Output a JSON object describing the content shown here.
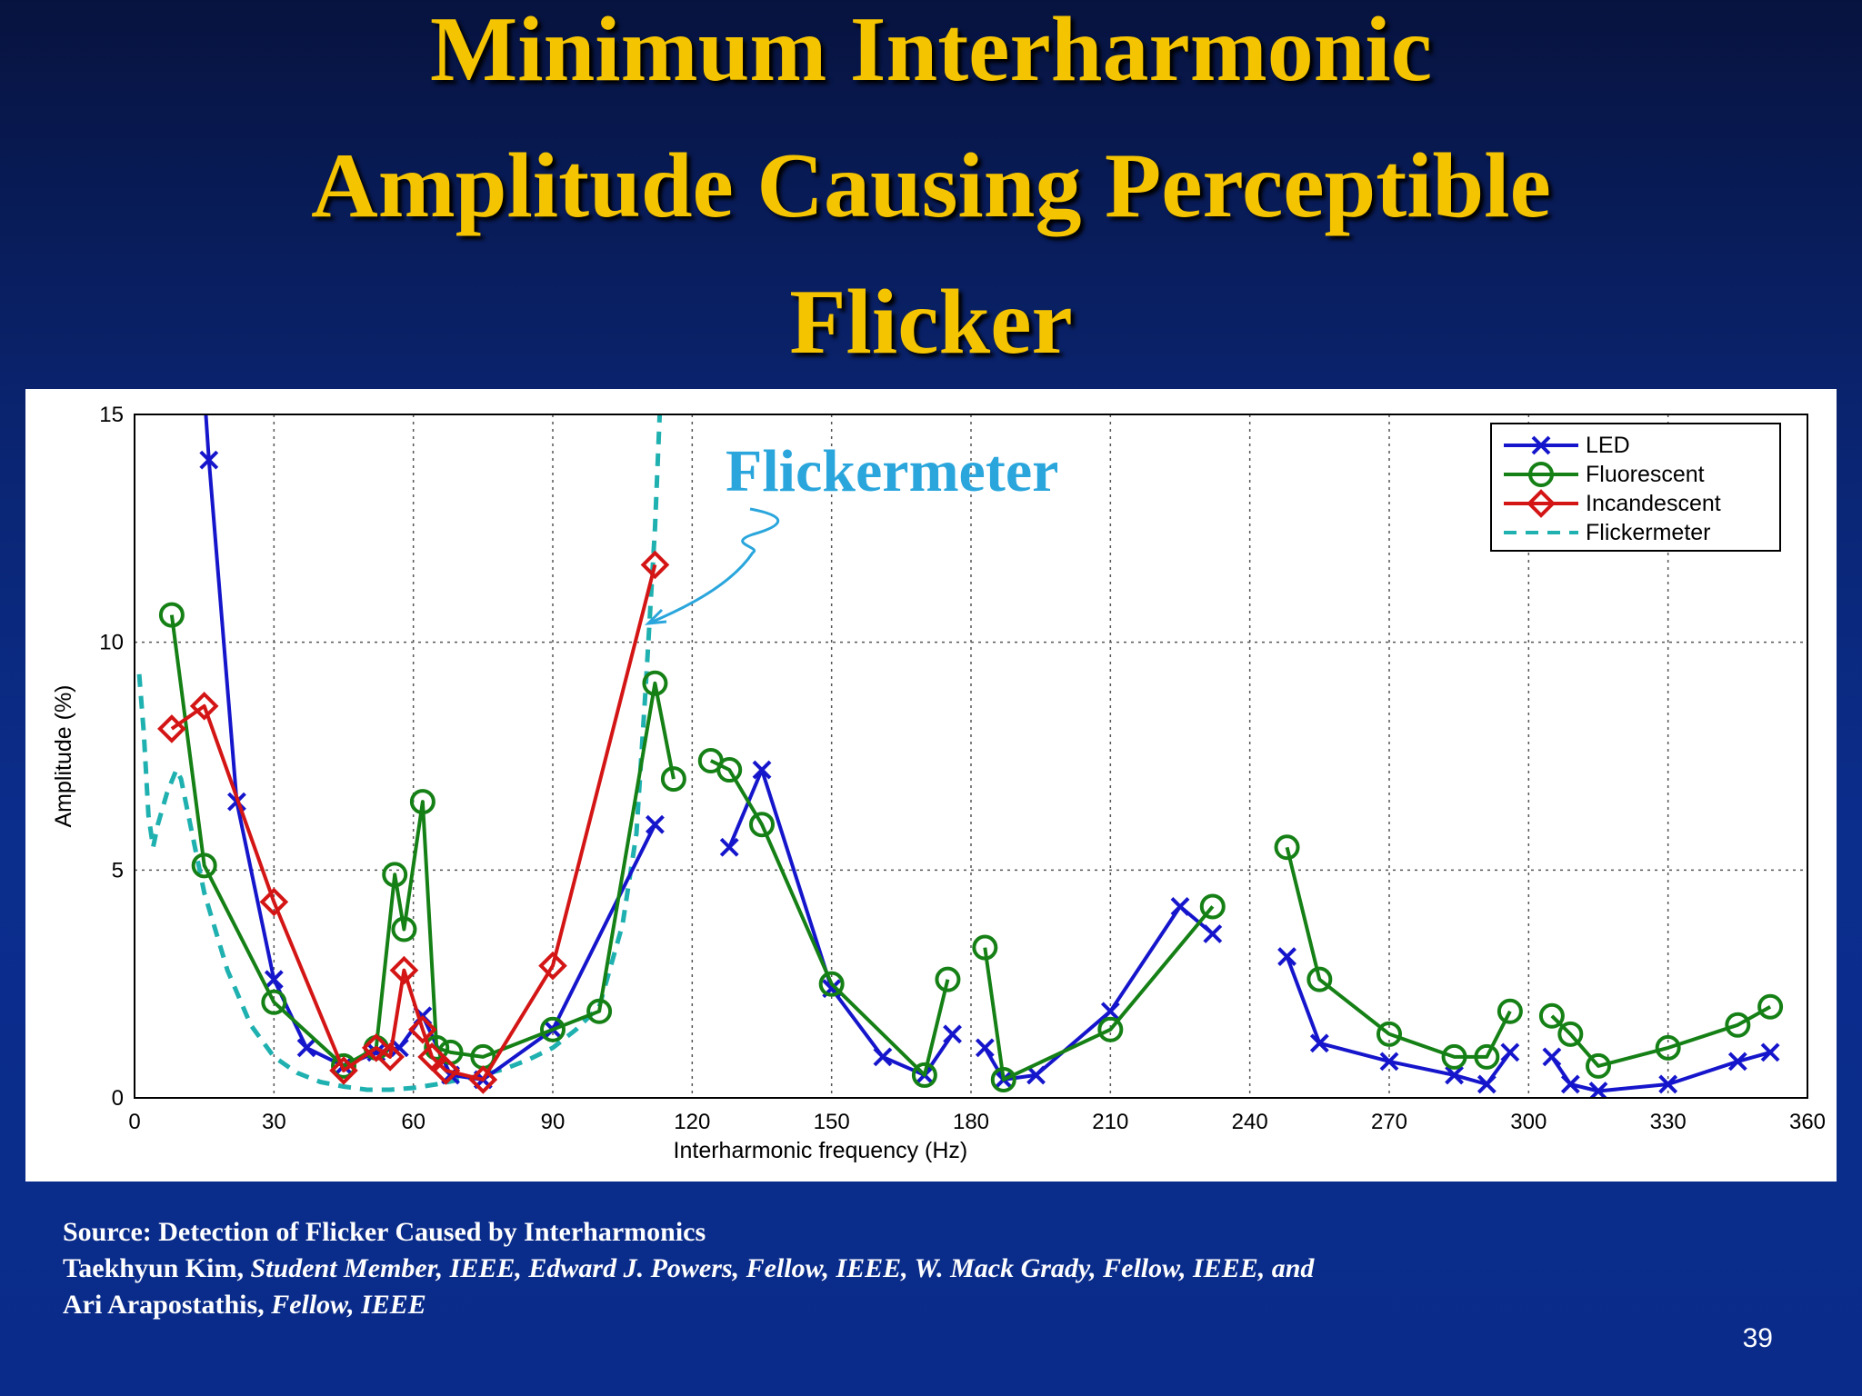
{
  "slide": {
    "title_lines": [
      "Minimum Interharmonic",
      "Amplitude Causing Perceptible",
      "Flicker"
    ],
    "source_line1": "Source: Detection of Flicker Caused by Interharmonics",
    "source_line2_name": "Taekhyun Kim,",
    "source_line2_rest": " Student Member, IEEE, Edward J. Powers, Fellow, IEEE, W. Mack Grady, Fellow, IEEE, and",
    "source_line3_name": "Ari Arapostathis,",
    "source_line3_rest": " Fellow, IEEE",
    "page_number": "39",
    "title_color": "#f5c400"
  },
  "chart_data": {
    "type": "line",
    "xlabel": "Interharmonic frequency (Hz)",
    "ylabel": "Amplitude (%)",
    "xlim": [
      0,
      360
    ],
    "ylim": [
      0,
      15
    ],
    "xticks": [
      0,
      30,
      60,
      90,
      120,
      150,
      180,
      210,
      240,
      270,
      300,
      330,
      360
    ],
    "yticks": [
      0,
      5,
      10,
      15
    ],
    "grid": true,
    "legend_position": "top-right",
    "annotation": {
      "text": "Flickermeter",
      "color": "#2aa6dc"
    },
    "series": [
      {
        "name": "LED",
        "color": "#1515cc",
        "marker": "x",
        "dash": "solid",
        "segments": [
          [
            [
              15,
              15.5
            ],
            [
              16,
              14.0
            ],
            [
              22,
              6.5
            ],
            [
              30,
              2.6
            ],
            [
              37,
              1.1
            ],
            [
              45,
              0.7
            ],
            [
              52,
              1.0
            ],
            [
              57,
              1.1
            ],
            [
              62,
              1.8
            ],
            [
              68,
              0.5
            ],
            [
              75,
              0.4
            ],
            [
              90,
              1.5
            ],
            [
              112,
              6.0
            ]
          ],
          [
            [
              128,
              5.5
            ],
            [
              135,
              7.2
            ],
            [
              150,
              2.4
            ],
            [
              161,
              0.9
            ],
            [
              170,
              0.5
            ],
            [
              176,
              1.4
            ]
          ],
          [
            [
              183,
              1.1
            ],
            [
              187,
              0.4
            ],
            [
              194,
              0.5
            ],
            [
              210,
              1.9
            ],
            [
              225,
              4.2
            ],
            [
              232,
              3.6
            ]
          ],
          [
            [
              248,
              3.1
            ],
            [
              255,
              1.2
            ],
            [
              270,
              0.8
            ],
            [
              284,
              0.5
            ],
            [
              291,
              0.3
            ],
            [
              296,
              1.0
            ]
          ],
          [
            [
              305,
              0.9
            ],
            [
              309,
              0.3
            ],
            [
              315,
              0.15
            ],
            [
              330,
              0.3
            ],
            [
              345,
              0.8
            ],
            [
              352,
              1.0
            ]
          ]
        ]
      },
      {
        "name": "Fluorescent",
        "color": "#158015",
        "marker": "circle",
        "dash": "solid",
        "segments": [
          [
            [
              8,
              10.6
            ],
            [
              15,
              5.1
            ],
            [
              30,
              2.1
            ],
            [
              45,
              0.7
            ],
            [
              52,
              1.1
            ],
            [
              56,
              4.9
            ],
            [
              58,
              3.7
            ],
            [
              62,
              6.5
            ],
            [
              65,
              1.1
            ],
            [
              68,
              1.0
            ],
            [
              75,
              0.9
            ],
            [
              90,
              1.5
            ],
            [
              100,
              1.9
            ],
            [
              112,
              9.1
            ],
            [
              116,
              7.0
            ]
          ],
          [
            [
              124,
              7.4
            ],
            [
              128,
              7.2
            ],
            [
              135,
              6.0
            ],
            [
              150,
              2.5
            ],
            [
              170,
              0.5
            ],
            [
              175,
              2.6
            ]
          ],
          [
            [
              183,
              3.3
            ],
            [
              187,
              0.4
            ],
            [
              210,
              1.5
            ],
            [
              232,
              4.2
            ]
          ],
          [
            [
              248,
              5.5
            ],
            [
              255,
              2.6
            ],
            [
              270,
              1.4
            ],
            [
              284,
              0.9
            ],
            [
              291,
              0.9
            ],
            [
              296,
              1.9
            ]
          ],
          [
            [
              305,
              1.8
            ],
            [
              309,
              1.4
            ],
            [
              315,
              0.7
            ],
            [
              330,
              1.1
            ],
            [
              345,
              1.6
            ],
            [
              352,
              2.0
            ]
          ]
        ]
      },
      {
        "name": "Incandescent",
        "color": "#d41515",
        "marker": "diamond",
        "dash": "solid",
        "segments": [
          [
            [
              8,
              8.1
            ],
            [
              15,
              8.6
            ],
            [
              30,
              4.3
            ],
            [
              45,
              0.6
            ],
            [
              52,
              1.1
            ],
            [
              55,
              0.9
            ],
            [
              58,
              2.8
            ],
            [
              62,
              1.5
            ],
            [
              64,
              0.9
            ],
            [
              67,
              0.6
            ],
            [
              75,
              0.4
            ],
            [
              90,
              2.9
            ],
            [
              112,
              11.7
            ]
          ]
        ]
      },
      {
        "name": "Flickermeter",
        "color": "#1fb0b0",
        "marker": "none",
        "dash": "dashed",
        "segments": [
          [
            [
              1,
              9.3
            ],
            [
              2,
              8.0
            ],
            [
              3,
              6.2
            ],
            [
              4,
              5.5
            ],
            [
              5,
              6.0
            ],
            [
              7,
              6.7
            ],
            [
              9,
              7.2
            ],
            [
              10,
              7.0
            ],
            [
              12,
              6.0
            ],
            [
              15,
              4.5
            ],
            [
              20,
              2.8
            ],
            [
              25,
              1.6
            ],
            [
              30,
              0.9
            ],
            [
              35,
              0.55
            ],
            [
              40,
              0.35
            ],
            [
              45,
              0.25
            ],
            [
              50,
              0.18
            ],
            [
              55,
              0.18
            ],
            [
              60,
              0.22
            ],
            [
              65,
              0.3
            ],
            [
              70,
              0.4
            ],
            [
              75,
              0.5
            ],
            [
              80,
              0.65
            ],
            [
              85,
              0.85
            ],
            [
              90,
              1.1
            ],
            [
              95,
              1.5
            ],
            [
              100,
              2.0
            ],
            [
              105,
              3.8
            ],
            [
              108,
              5.8
            ],
            [
              110,
              9.0
            ],
            [
              112,
              12.5
            ],
            [
              113,
              15.0
            ]
          ]
        ]
      }
    ]
  }
}
